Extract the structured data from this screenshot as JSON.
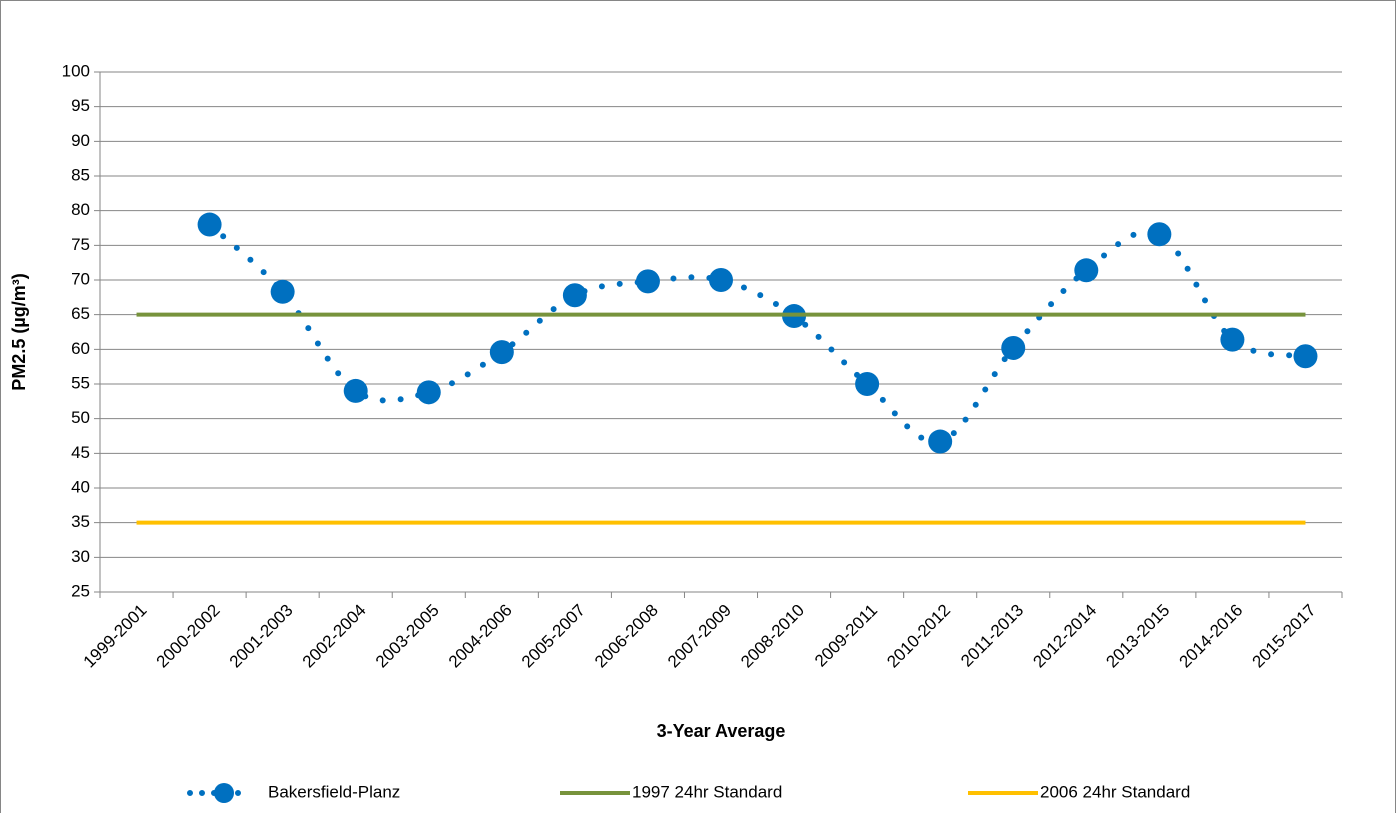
{
  "chart_data": {
    "type": "line",
    "x_label": "3-Year Average",
    "y_label": "PM2.5 (µg/m³)",
    "categories": [
      "1999-2001",
      "2000-2002",
      "2001-2003",
      "2002-2004",
      "2003-2005",
      "2004-2006",
      "2005-2007",
      "2006-2008",
      "2007-2009",
      "2008-2010",
      "2009-2011",
      "2010-2012",
      "2011-2013",
      "2012-2014",
      "2013-2015",
      "2014-2016",
      "2015-2017"
    ],
    "series": [
      {
        "name": "Bakersfield-Planz",
        "color": "#0070c0",
        "style": "dotted-markers",
        "values": [
          null,
          78,
          68.3,
          54,
          53.8,
          59.6,
          67.8,
          69.8,
          70,
          64.8,
          55,
          46.7,
          60.2,
          71.4,
          76.6,
          61.4,
          59
        ]
      },
      {
        "name": "1997 24hr Standard",
        "color": "#77933c",
        "style": "solid",
        "values": [
          65,
          65,
          65,
          65,
          65,
          65,
          65,
          65,
          65,
          65,
          65,
          65,
          65,
          65,
          65,
          65,
          65
        ]
      },
      {
        "name": "2006 24hr Standard",
        "color": "#ffc000",
        "style": "solid",
        "values": [
          35,
          35,
          35,
          35,
          35,
          35,
          35,
          35,
          35,
          35,
          35,
          35,
          35,
          35,
          35,
          35,
          35
        ]
      }
    ],
    "ylim": [
      25,
      100
    ],
    "yticks": [
      25,
      30,
      35,
      40,
      45,
      50,
      55,
      60,
      65,
      70,
      75,
      80,
      85,
      90,
      95,
      100
    ],
    "grid": true,
    "legend": "bottom"
  }
}
